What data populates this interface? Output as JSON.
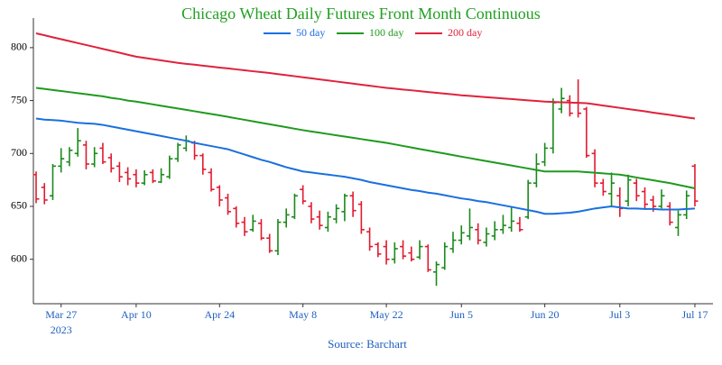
{
  "chart_data": {
    "type": "ohlc",
    "title": "Chicago Wheat Daily Futures Front Month Continuous",
    "source": "Source: Barchart",
    "categories": [
      null,
      null,
      null,
      "Mar 27",
      null,
      null,
      null,
      null,
      null,
      null,
      null,
      null,
      "Apr 10",
      null,
      null,
      null,
      null,
      null,
      null,
      null,
      null,
      null,
      "Apr 24",
      null,
      null,
      null,
      null,
      null,
      null,
      null,
      null,
      null,
      "May 8",
      null,
      null,
      null,
      null,
      null,
      null,
      null,
      null,
      null,
      "May 22",
      null,
      null,
      null,
      null,
      null,
      null,
      null,
      null,
      "Jun 5",
      null,
      null,
      null,
      null,
      null,
      null,
      null,
      null,
      null,
      "Jun 20",
      null,
      null,
      null,
      null,
      null,
      null,
      null,
      null,
      "Jul 3",
      null,
      null,
      null,
      null,
      null,
      null,
      null,
      null,
      "Jul 17"
    ],
    "x_tick_sublabel": "2023",
    "ohlc": {
      "up_color": "#1a8a1a",
      "down_color": "#e01b2f",
      "open": [
        680,
        668,
        660,
        688,
        692,
        700,
        708,
        690,
        705,
        696,
        688,
        682,
        680,
        672,
        682,
        673,
        678,
        695,
        705,
        710,
        698,
        682,
        668,
        658,
        648,
        635,
        628,
        634,
        620,
        608,
        635,
        640,
        666,
        650,
        640,
        630,
        638,
        645,
        660,
        652,
        626,
        614,
        612,
        600,
        612,
        606,
        602,
        612,
        588,
        592,
        610,
        618,
        622,
        628,
        616,
        622,
        628,
        630,
        634,
        640,
        672,
        692,
        705,
        742,
        750,
        748,
        742,
        700,
        672,
        662,
        660,
        655,
        672,
        664,
        656,
        650,
        650,
        630,
        642,
        688
      ],
      "high": [
        683,
        672,
        690,
        705,
        706,
        724,
        712,
        706,
        710,
        700,
        692,
        687,
        685,
        684,
        685,
        686,
        698,
        710,
        717,
        712,
        700,
        686,
        670,
        662,
        650,
        640,
        642,
        638,
        624,
        638,
        648,
        662,
        670,
        654,
        646,
        645,
        652,
        662,
        664,
        655,
        630,
        616,
        618,
        616,
        618,
        612,
        618,
        614,
        598,
        616,
        626,
        632,
        648,
        634,
        630,
        636,
        642,
        650,
        640,
        675,
        700,
        710,
        752,
        762,
        755,
        770,
        744,
        704,
        676,
        682,
        668,
        680,
        676,
        668,
        660,
        666,
        654,
        646,
        665,
        690
      ],
      "low": [
        653,
        652,
        656,
        682,
        688,
        697,
        685,
        687,
        690,
        682,
        673,
        670,
        668,
        670,
        672,
        672,
        676,
        692,
        702,
        694,
        680,
        664,
        650,
        642,
        630,
        622,
        626,
        618,
        606,
        604,
        630,
        638,
        652,
        634,
        628,
        626,
        634,
        636,
        640,
        624,
        608,
        602,
        595,
        596,
        600,
        598,
        600,
        588,
        575,
        590,
        606,
        614,
        618,
        614,
        612,
        618,
        624,
        626,
        626,
        638,
        668,
        688,
        700,
        738,
        735,
        734,
        696,
        668,
        660,
        650,
        640,
        650,
        655,
        648,
        645,
        648,
        632,
        622,
        638,
        650
      ],
      "close": [
        657,
        656,
        688,
        695,
        703,
        712,
        690,
        700,
        692,
        686,
        678,
        676,
        672,
        680,
        674,
        680,
        695,
        708,
        712,
        698,
        685,
        666,
        656,
        645,
        634,
        626,
        636,
        620,
        608,
        635,
        642,
        660,
        655,
        638,
        632,
        640,
        648,
        660,
        646,
        628,
        612,
        605,
        600,
        610,
        603,
        600,
        612,
        590,
        595,
        612,
        618,
        625,
        630,
        618,
        624,
        628,
        632,
        636,
        628,
        672,
        690,
        705,
        748,
        752,
        738,
        738,
        698,
        672,
        664,
        672,
        648,
        675,
        660,
        652,
        650,
        660,
        635,
        642,
        660,
        655
      ]
    },
    "series": [
      {
        "name": "50 day",
        "color": "#1a6fdf",
        "values": [
          733,
          732,
          731.5,
          731,
          730,
          729,
          728.5,
          728,
          727,
          725.5,
          724,
          722.5,
          721,
          719.5,
          718,
          716.5,
          715,
          713.5,
          712,
          710,
          708.5,
          707,
          705.5,
          704,
          701.5,
          699,
          696.5,
          694,
          692,
          689.5,
          687,
          685,
          683,
          682,
          681,
          680,
          679,
          678,
          676.5,
          675,
          673,
          671.5,
          670,
          668.5,
          667,
          665.5,
          664.5,
          663,
          662,
          660.5,
          659,
          657.5,
          656.5,
          655,
          654,
          652.5,
          651,
          649.5,
          648,
          646.5,
          645,
          643,
          643,
          643.5,
          644,
          645,
          646.5,
          648,
          649,
          650,
          649,
          648,
          648,
          647.5,
          647.5,
          647,
          647,
          647,
          647.5,
          648
        ]
      },
      {
        "name": "100 day",
        "color": "#1f9a1f",
        "values": [
          762,
          761,
          760,
          759,
          758,
          757,
          756,
          755,
          754,
          752.5,
          751.5,
          750,
          749,
          747.7,
          746.4,
          745.1,
          743.8,
          742.5,
          741.2,
          739.9,
          738.6,
          737.3,
          736,
          734.6,
          733.2,
          731.8,
          730.4,
          729,
          727.6,
          726.2,
          724.8,
          723.4,
          722,
          720.8,
          719.6,
          718.4,
          717.2,
          716,
          714.8,
          713.6,
          712.4,
          711.2,
          710,
          708.6,
          707.1,
          705.7,
          704.2,
          702.8,
          701.3,
          699.9,
          698.4,
          697,
          695.6,
          694.2,
          692.8,
          691.4,
          690,
          688.6,
          687.2,
          685.8,
          684.4,
          683,
          683,
          683,
          683,
          683,
          682.4,
          681.8,
          681.2,
          680.6,
          680,
          678.7,
          677.3,
          676,
          674.7,
          673.3,
          672,
          670.3,
          668.7,
          667
        ]
      },
      {
        "name": "200 day",
        "color": "#e0223c",
        "values": [
          813.5,
          811.7,
          809.8,
          808,
          806.2,
          804.3,
          802.5,
          800.7,
          798.8,
          797,
          795.2,
          793.3,
          791.5,
          790.3,
          789.1,
          788,
          786.8,
          785.6,
          784.7,
          783.9,
          783,
          782.1,
          781.2,
          780.4,
          779.5,
          778.6,
          777.7,
          776.9,
          776,
          775,
          774,
          773,
          772,
          771,
          770,
          769,
          768,
          767,
          766,
          765,
          764,
          763,
          762,
          761.2,
          760.4,
          759.7,
          758.9,
          758.1,
          757.3,
          756.6,
          755.8,
          755,
          754.4,
          753.8,
          753.2,
          752.6,
          752,
          751.4,
          750.8,
          750.2,
          749.6,
          749,
          748.7,
          748.4,
          748.1,
          747.8,
          747.5,
          746.4,
          745.3,
          744.2,
          743.1,
          742,
          740.9,
          739.8,
          738.6,
          737.5,
          736.4,
          735.3,
          734.1,
          733
        ]
      }
    ],
    "ylim": [
      558,
      828
    ],
    "yticks": [
      600,
      650,
      700,
      750,
      800
    ]
  }
}
